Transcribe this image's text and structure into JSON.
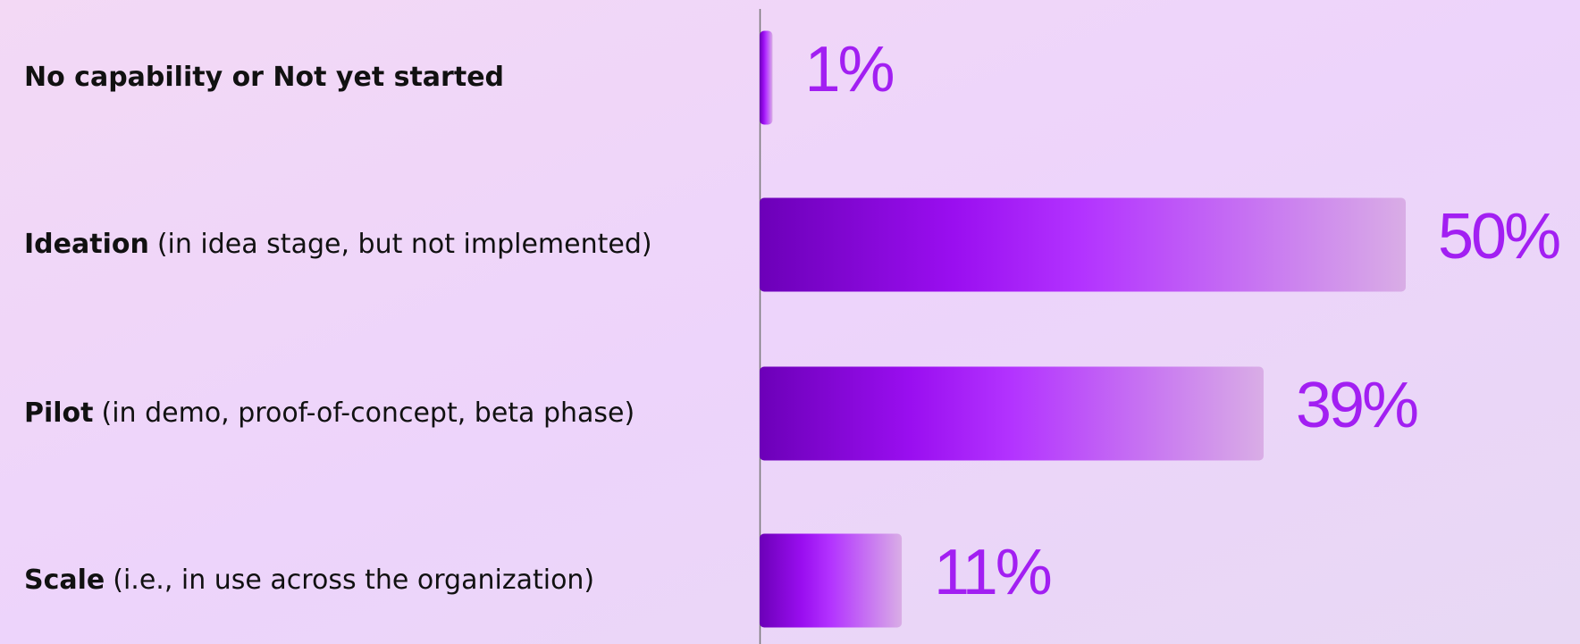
{
  "chart_data": {
    "type": "bar",
    "orientation": "horizontal",
    "categories": [
      {
        "label": "No capability or Not yet started",
        "note": null
      },
      {
        "label": "Ideation",
        "note": "(in idea stage, but not implemented)"
      },
      {
        "label": "Pilot",
        "note": "(in demo, proof-of-concept, beta phase)"
      },
      {
        "label": "Scale",
        "note": "(i.e., in use across the organization)"
      }
    ],
    "values": [
      1,
      50,
      39,
      11
    ],
    "value_labels": [
      "1%",
      "50%",
      "39%",
      "11%"
    ],
    "xlim": [
      0,
      50
    ],
    "color": "#a21ff2"
  }
}
